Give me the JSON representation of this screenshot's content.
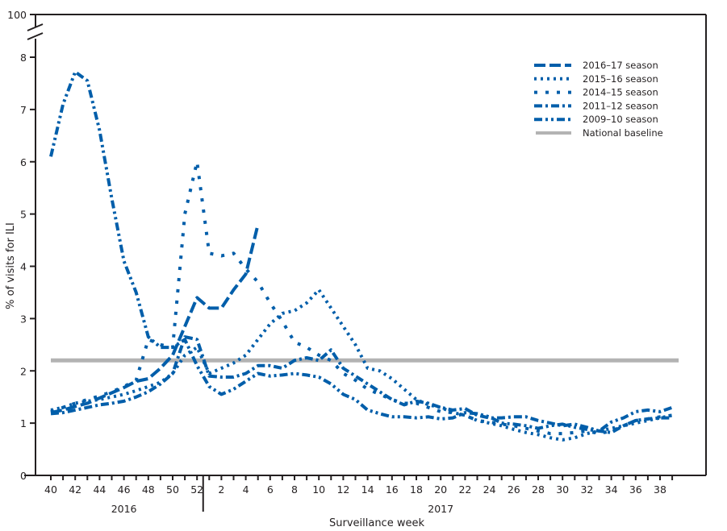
{
  "chart_data": {
    "type": "line",
    "title": "",
    "xlabel": "Surveillance week",
    "ylabel": "% of visits for ILI",
    "ylim": [
      0,
      8
    ],
    "y_break": {
      "below": 8,
      "top_label": "100"
    },
    "yticks": [
      "0",
      "1",
      "2",
      "3",
      "4",
      "5",
      "6",
      "7",
      "8"
    ],
    "weeks": [
      40,
      41,
      42,
      43,
      44,
      45,
      46,
      47,
      48,
      49,
      50,
      51,
      52,
      1,
      2,
      3,
      4,
      5,
      6,
      7,
      8,
      9,
      10,
      11,
      12,
      13,
      14,
      15,
      16,
      17,
      18,
      19,
      20,
      21,
      22,
      23,
      24,
      25,
      26,
      27,
      28,
      29,
      30,
      31,
      32,
      33,
      34,
      35,
      36,
      37,
      38,
      39
    ],
    "xtick_labels": [
      "40",
      "42",
      "44",
      "46",
      "48",
      "50",
      "52",
      "2",
      "4",
      "6",
      "8",
      "10",
      "12",
      "14",
      "16",
      "18",
      "20",
      "22",
      "24",
      "26",
      "28",
      "30",
      "32",
      "34",
      "36",
      "38"
    ],
    "year_labels": [
      {
        "label": "2016",
        "from_week_index": 0,
        "to_week_index": 12
      },
      {
        "label": "2017",
        "from_week_index": 13,
        "to_week_index": 51
      }
    ],
    "baseline": {
      "name": "National baseline",
      "value": 2.2,
      "color": "#b3b3b3"
    },
    "series": [
      {
        "name": "2016–17 season",
        "dash": "long-dash",
        "values": [
          1.2,
          1.25,
          1.32,
          1.38,
          1.48,
          1.58,
          1.68,
          1.8,
          1.85,
          2.05,
          2.3,
          2.85,
          3.4,
          3.2,
          3.2,
          3.55,
          3.85,
          4.8
        ]
      },
      {
        "name": "2015–16 season",
        "dash": "dot",
        "values": [
          1.25,
          1.3,
          1.38,
          1.42,
          1.45,
          1.5,
          1.55,
          1.62,
          1.7,
          1.78,
          1.95,
          2.3,
          2.45,
          1.95,
          2.05,
          2.15,
          2.3,
          2.6,
          2.9,
          3.1,
          3.15,
          3.3,
          3.55,
          3.2,
          2.85,
          2.5,
          2.05,
          2.0,
          1.85,
          1.65,
          1.45,
          1.35,
          1.3,
          1.2,
          1.15,
          1.05,
          1.0,
          0.95,
          0.88,
          0.82,
          0.78,
          0.72,
          0.68,
          0.72,
          0.8,
          0.85,
          0.9,
          0.95,
          1.0,
          1.05,
          1.1,
          1.15
        ]
      },
      {
        "name": "2014–15 season",
        "dash": "square-dot",
        "values": [
          1.22,
          1.3,
          1.38,
          1.45,
          1.52,
          1.6,
          1.7,
          1.82,
          2.6,
          2.5,
          2.45,
          5.0,
          6.0,
          4.25,
          4.2,
          4.25,
          3.95,
          3.7,
          3.3,
          2.95,
          2.55,
          2.45,
          2.3,
          2.2,
          1.95,
          1.82,
          1.65,
          1.55,
          1.45,
          1.38,
          1.38,
          1.3,
          1.22,
          1.2,
          1.15,
          1.05,
          1.02,
          0.98,
          0.95,
          0.9,
          0.85,
          0.8,
          0.8,
          0.82,
          0.85,
          0.8,
          0.85,
          0.95,
          1.05,
          1.08,
          1.12,
          1.15
        ]
      },
      {
        "name": "2011–12 season",
        "dash": "dash-dot",
        "values": [
          1.18,
          1.2,
          1.25,
          1.3,
          1.35,
          1.38,
          1.42,
          1.5,
          1.6,
          1.75,
          1.95,
          2.65,
          2.6,
          1.9,
          1.88,
          1.88,
          1.95,
          2.1,
          2.1,
          2.05,
          2.2,
          2.25,
          2.2,
          2.4,
          2.05,
          1.9,
          1.75,
          1.6,
          1.45,
          1.35,
          1.42,
          1.38,
          1.3,
          1.25,
          1.28,
          1.15,
          1.1,
          1.1,
          1.12,
          1.12,
          1.05,
          1.0,
          0.95,
          0.98,
          0.92,
          0.85,
          0.82,
          0.95,
          1.05,
          1.08,
          1.1,
          1.1
        ]
      },
      {
        "name": "2009–10 season",
        "dash": "dash-dot-dot",
        "values": [
          6.1,
          7.1,
          7.72,
          7.55,
          6.6,
          5.3,
          4.1,
          3.5,
          2.65,
          2.45,
          2.45,
          2.6,
          2.1,
          1.7,
          1.55,
          1.65,
          1.8,
          1.95,
          1.9,
          1.92,
          1.95,
          1.92,
          1.88,
          1.75,
          1.55,
          1.45,
          1.25,
          1.18,
          1.12,
          1.12,
          1.1,
          1.12,
          1.08,
          1.1,
          1.2,
          1.18,
          1.12,
          1.0,
          0.98,
          0.95,
          0.9,
          0.95,
          0.98,
          0.92,
          0.88,
          0.85,
          1.02,
          1.1,
          1.22,
          1.25,
          1.22,
          1.3
        ]
      }
    ],
    "legend_position": "top-right",
    "line_color": "#005eaa",
    "grid": false
  }
}
